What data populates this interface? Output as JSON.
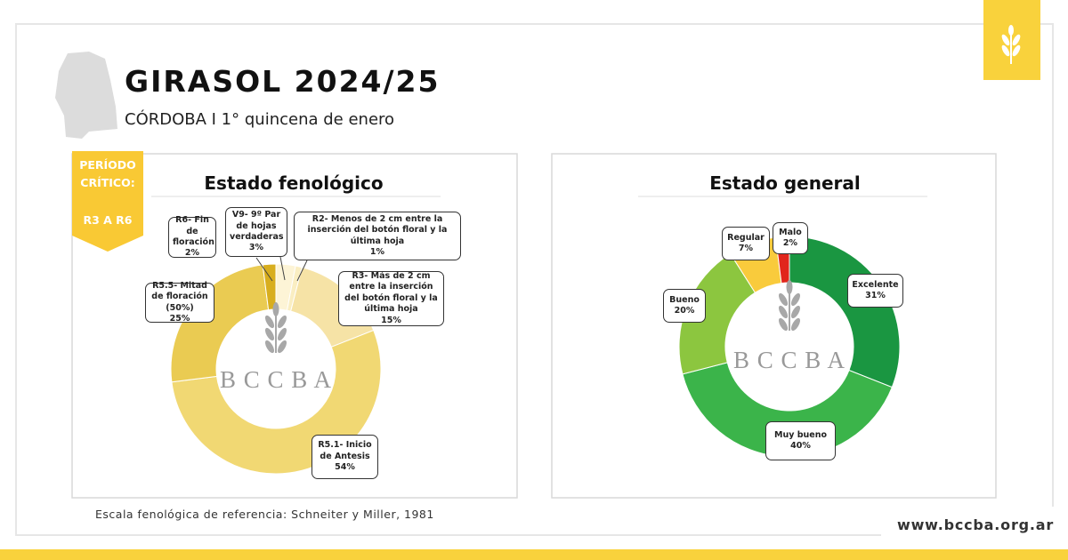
{
  "header": {
    "title": "GIRASOL 2024/25",
    "subtitle": "CÓRDOBA I 1° quincena de enero"
  },
  "badge": {
    "line1": "PERÍODO",
    "line2": "CRÍTICO:",
    "range": "R3 A R6"
  },
  "chart_data": [
    {
      "type": "donut",
      "title": "Estado fenológico",
      "watermark": "B C C B A",
      "categories": [
        "V9- 9º Par de hojas verdaderas",
        "R2- Menos de 2 cm entre la inserción del botón floral y la última hoja",
        "R3- Más de 2 cm entre la inserción del botón floral y la última hoja",
        "R5.1- Inicio de Antesis",
        "R5.5- Mitad de floración (50%)",
        "R6- Fin de floración"
      ],
      "values": [
        3,
        1,
        15,
        54,
        25,
        2
      ],
      "value_labels": [
        "3%",
        "1%",
        "15%",
        "54%",
        "25%",
        "2%"
      ],
      "colors": [
        "#fdf4d6",
        "#faeec2",
        "#f6e3a6",
        "#f1d873",
        "#eacb52",
        "#d8ae1e"
      ]
    },
    {
      "type": "donut",
      "title": "Estado general",
      "watermark": "B C C B A",
      "categories": [
        "Excelente",
        "Muy bueno",
        "Bueno",
        "Regular",
        "Malo"
      ],
      "values": [
        31,
        40,
        20,
        7,
        2
      ],
      "value_labels": [
        "31%",
        "40%",
        "20%",
        "7%",
        "2%"
      ],
      "colors": [
        "#1a9641",
        "#3bb44a",
        "#8cc63f",
        "#f9cb3c",
        "#e1261c"
      ]
    }
  ],
  "footer": {
    "note": "Escala fenológica de referencia: Schneiter y Miller, 1981",
    "url": "www.bccba.org.ar"
  }
}
